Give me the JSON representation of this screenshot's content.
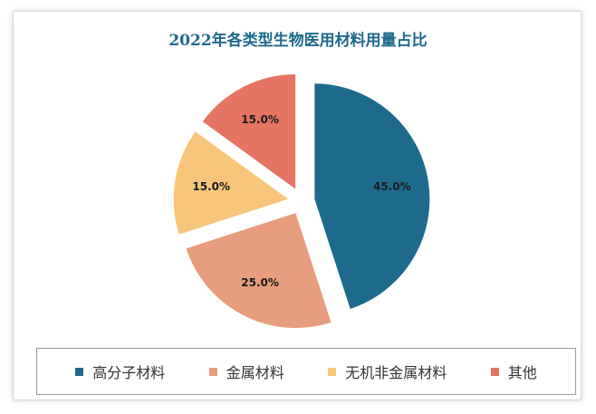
{
  "chart_data": {
    "type": "pie",
    "title": "2022年各类型生物医用材料用量占比",
    "categories": [
      "高分子材料",
      "金属材料",
      "无机非金属材料",
      "其他"
    ],
    "values": [
      45.0,
      25.0,
      15.0,
      15.0
    ],
    "data_labels": [
      "45.0%",
      "25.0%",
      "15.0%",
      "15.0%"
    ],
    "colors": [
      "#1d6a8c",
      "#e89e7e",
      "#f7c57a",
      "#e57463"
    ],
    "exploded": true,
    "legend_position": "bottom"
  }
}
